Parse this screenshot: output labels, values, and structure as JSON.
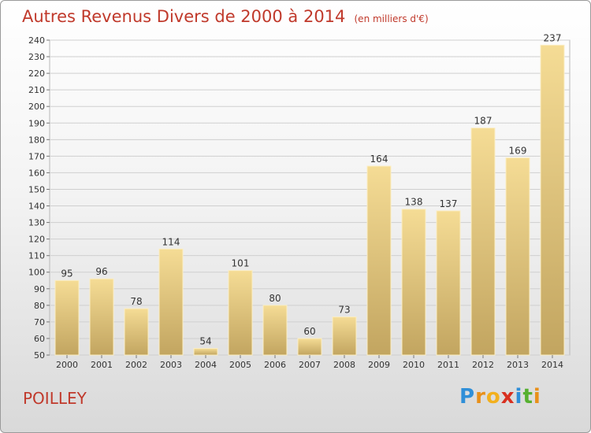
{
  "header": {
    "title": "Autres Revenus Divers de 2000 à 2014",
    "unit": "(en milliers d'€)"
  },
  "footer": {
    "commune": "POILLEY",
    "logo_letters": [
      "P",
      "r",
      "o",
      "x",
      "i",
      "t",
      "i"
    ],
    "logo_colors": [
      "#2f8fd8",
      "#e8901a",
      "#f2b01e",
      "#d83020",
      "#2f8fd8",
      "#56b030",
      "#e8901a"
    ]
  },
  "chart_data": {
    "type": "bar",
    "title": "Autres Revenus Divers de 2000 à 2014",
    "categories": [
      "2000",
      "2001",
      "2002",
      "2003",
      "2004",
      "2005",
      "2006",
      "2007",
      "2008",
      "2009",
      "2010",
      "2011",
      "2012",
      "2013",
      "2014"
    ],
    "values": [
      95,
      96,
      78,
      114,
      54,
      101,
      80,
      60,
      73,
      164,
      138,
      137,
      187,
      169,
      237
    ],
    "ylim": [
      50,
      240
    ],
    "yticks": [
      50,
      60,
      70,
      80,
      90,
      100,
      110,
      120,
      130,
      140,
      150,
      160,
      170,
      180,
      190,
      200,
      210,
      220,
      230,
      240
    ],
    "grid": true,
    "bar_color_top": "#f5dc95",
    "bar_color_bottom": "#c2a560"
  }
}
